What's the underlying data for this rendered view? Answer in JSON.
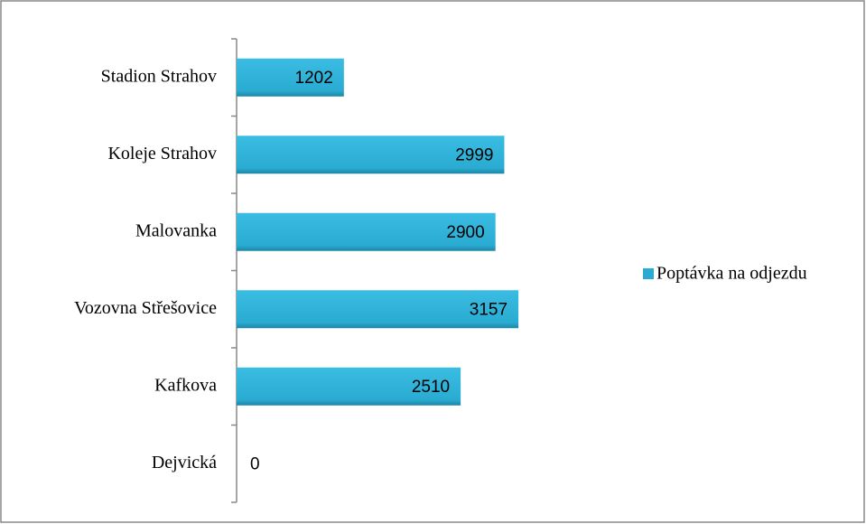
{
  "chart_data": {
    "type": "bar",
    "orientation": "horizontal",
    "categories": [
      "Stadion Strahov",
      "Koleje Strahov",
      "Malovanka",
      "Vozovna Střešovice",
      "Kafkova",
      "Dejvická"
    ],
    "series": [
      {
        "name": "Poptávka na odjezdu",
        "color": "#2aabd2",
        "values": [
          1202,
          2999,
          2900,
          3157,
          2510,
          0
        ]
      }
    ],
    "xlim": [
      0,
      3500
    ],
    "legend": "right"
  }
}
